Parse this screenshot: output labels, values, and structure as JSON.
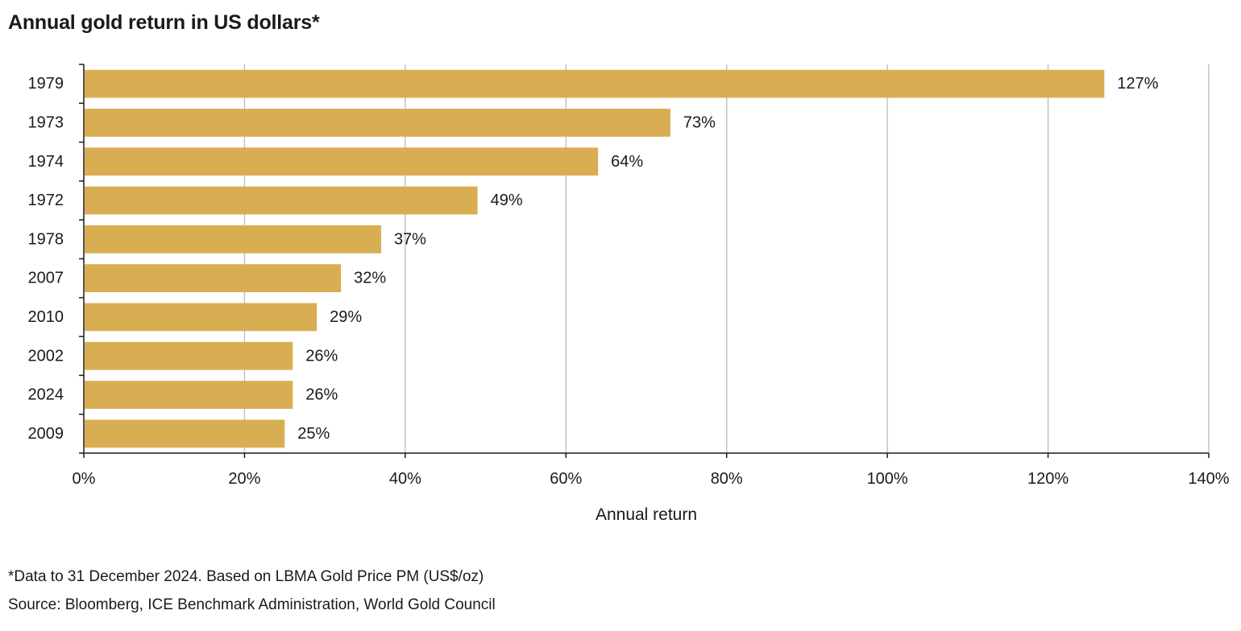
{
  "chart_data": {
    "type": "bar",
    "orientation": "horizontal",
    "title": "Annual gold return in US dollars*",
    "categories": [
      "1979",
      "1973",
      "1974",
      "1972",
      "1978",
      "2007",
      "2010",
      "2002",
      "2024",
      "2009"
    ],
    "values": [
      127,
      73,
      64,
      49,
      37,
      32,
      29,
      26,
      26,
      25
    ],
    "data_labels": [
      "127%",
      "73%",
      "64%",
      "49%",
      "37%",
      "32%",
      "29%",
      "26%",
      "26%",
      "25%"
    ],
    "xlabel": "Annual return",
    "ylabel": "",
    "xlim": [
      0,
      140
    ],
    "xticks": [
      0,
      20,
      40,
      60,
      80,
      100,
      120,
      140
    ],
    "xtick_labels": [
      "0%",
      "20%",
      "40%",
      "60%",
      "80%",
      "100%",
      "120%",
      "140%"
    ],
    "grid": true,
    "bar_color": "#D9AE53",
    "grid_color": "#BBBBBB",
    "axis_color": "#1a1a1a"
  },
  "footnotes": {
    "note": "*Data to 31 December 2024. Based on LBMA Gold Price PM (US$/oz)",
    "source": "Source: Bloomberg, ICE Benchmark Administration, World Gold Council"
  }
}
